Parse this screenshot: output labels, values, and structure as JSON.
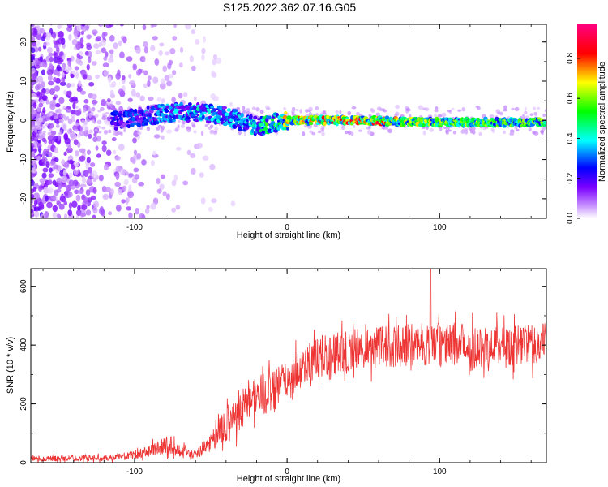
{
  "title": "S125.2022.362.07.16.G05",
  "chart_data": [
    {
      "type": "heatmap",
      "name": "spectrogram",
      "xlabel": "Height of straight line (km)",
      "ylabel": "Frequency (Hz)",
      "xlim": [
        -168,
        170
      ],
      "ylim": [
        -25,
        24.5
      ],
      "xticks": [
        -100,
        0,
        100
      ],
      "yticks": [
        -20,
        -10,
        0,
        10,
        20
      ],
      "grid": false,
      "colorbar": {
        "label": "Normalized spectral amplitude",
        "range": [
          0,
          0.97
        ],
        "ticks": [
          0.0,
          0.2,
          0.4,
          0.6,
          0.8
        ],
        "tick_labels": [
          "0.0",
          "0.2",
          "0.4",
          "0.6",
          "0.8"
        ],
        "colormap": [
          "#ffffff",
          "#cc99ff",
          "#7a00ff",
          "#0000ff",
          "#00ffff",
          "#00ff00",
          "#ffff00",
          "#ff0000",
          "#ff0080"
        ]
      },
      "ridge": [
        {
          "x": -110,
          "freq": 0,
          "amp": 0.25
        },
        {
          "x": -80,
          "freq": 2,
          "amp": 0.35
        },
        {
          "x": -60,
          "freq": 2,
          "amp": 0.4
        },
        {
          "x": -40,
          "freq": 1,
          "amp": 0.35
        },
        {
          "x": -20,
          "freq": -1.5,
          "amp": 0.4
        },
        {
          "x": 0,
          "freq": 0,
          "amp": 0.7
        },
        {
          "x": 50,
          "freq": 0,
          "amp": 0.8
        },
        {
          "x": 100,
          "freq": -0.5,
          "amp": 0.6
        },
        {
          "x": 170,
          "freq": -0.5,
          "amp": 0.55
        }
      ]
    },
    {
      "type": "line",
      "name": "snr",
      "xlabel": "Height of straight line (km)",
      "ylabel": "SNR (10 * v/v)",
      "xlim": [
        -168,
        170
      ],
      "ylim": [
        0,
        660
      ],
      "xticks": [
        -100,
        0,
        100
      ],
      "yticks": [
        0,
        200,
        400,
        600
      ],
      "color": "#ee3333",
      "grid": false,
      "trend": [
        {
          "x": -168,
          "y": 14
        },
        {
          "x": -120,
          "y": 15
        },
        {
          "x": -100,
          "y": 25
        },
        {
          "x": -80,
          "y": 60
        },
        {
          "x": -70,
          "y": 40
        },
        {
          "x": -60,
          "y": 25
        },
        {
          "x": -50,
          "y": 70
        },
        {
          "x": -40,
          "y": 130
        },
        {
          "x": -30,
          "y": 190
        },
        {
          "x": -20,
          "y": 230
        },
        {
          "x": -10,
          "y": 240
        },
        {
          "x": 0,
          "y": 280
        },
        {
          "x": 10,
          "y": 330
        },
        {
          "x": 20,
          "y": 360
        },
        {
          "x": 30,
          "y": 370
        },
        {
          "x": 50,
          "y": 390
        },
        {
          "x": 80,
          "y": 400
        },
        {
          "x": 100,
          "y": 405
        },
        {
          "x": 130,
          "y": 395
        },
        {
          "x": 170,
          "y": 410
        }
      ],
      "peak": {
        "x": 94,
        "y": 660
      },
      "noise_amplitude": 90
    }
  ]
}
